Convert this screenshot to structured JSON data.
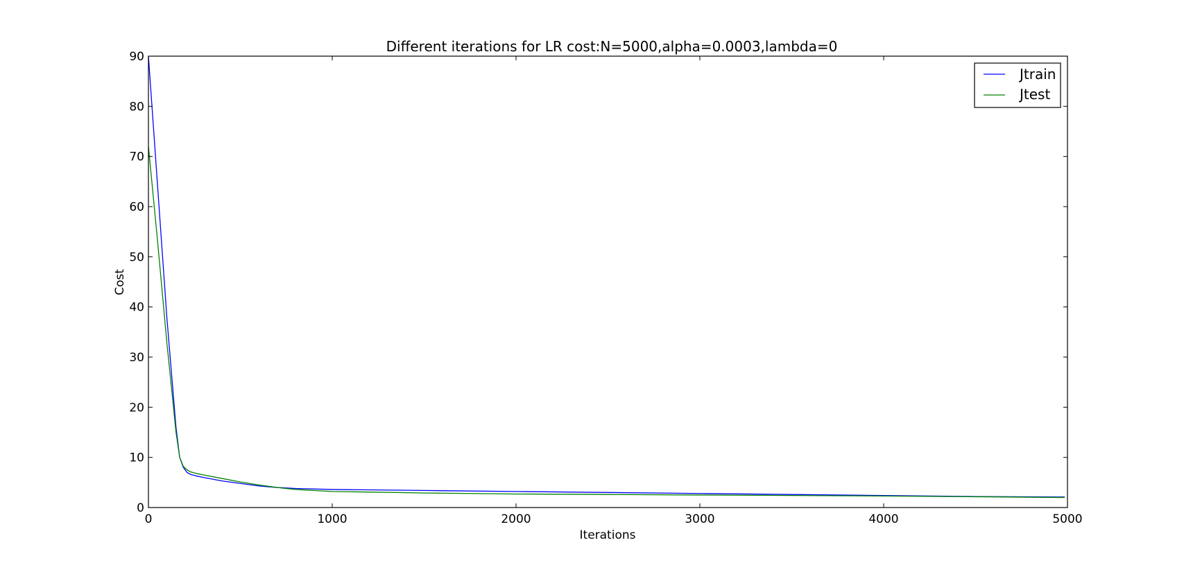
{
  "chart_data": {
    "type": "line",
    "title": "Different iterations for LR cost:N=5000,alpha=0.0003,lambda=0",
    "xlabel": "Iterations",
    "ylabel": "Cost",
    "xlim": [
      0,
      5000
    ],
    "ylim": [
      0,
      90
    ],
    "xticks": [
      0,
      1000,
      2000,
      3000,
      4000,
      5000
    ],
    "yticks": [
      0,
      10,
      20,
      30,
      40,
      50,
      60,
      70,
      80,
      90
    ],
    "grid": false,
    "legend_position": "upper right",
    "series": [
      {
        "name": "Jtrain",
        "color": "#0000ff",
        "x": [
          0,
          50,
          100,
          150,
          170,
          190,
          210,
          230,
          260,
          300,
          400,
          500,
          600,
          700,
          800,
          1000,
          1500,
          2000,
          2500,
          3000,
          3500,
          4000,
          4500,
          4985
        ],
        "y": [
          90,
          64,
          38,
          16,
          10,
          8,
          7,
          6.6,
          6.3,
          6.0,
          5.3,
          4.8,
          4.3,
          4.0,
          3.8,
          3.6,
          3.4,
          3.2,
          3.0,
          2.8,
          2.6,
          2.4,
          2.2,
          2.1
        ]
      },
      {
        "name": "Jtest",
        "color": "#008000",
        "x": [
          0,
          50,
          100,
          150,
          170,
          190,
          210,
          230,
          260,
          300,
          400,
          500,
          600,
          700,
          800,
          1000,
          1500,
          2000,
          2500,
          3000,
          3500,
          4000,
          4500,
          4985
        ],
        "y": [
          72,
          53,
          33,
          15,
          10,
          8.2,
          7.5,
          7.1,
          6.8,
          6.5,
          5.8,
          5.1,
          4.5,
          4.0,
          3.6,
          3.2,
          2.9,
          2.7,
          2.6,
          2.5,
          2.4,
          2.3,
          2.15,
          2.0
        ]
      }
    ]
  }
}
